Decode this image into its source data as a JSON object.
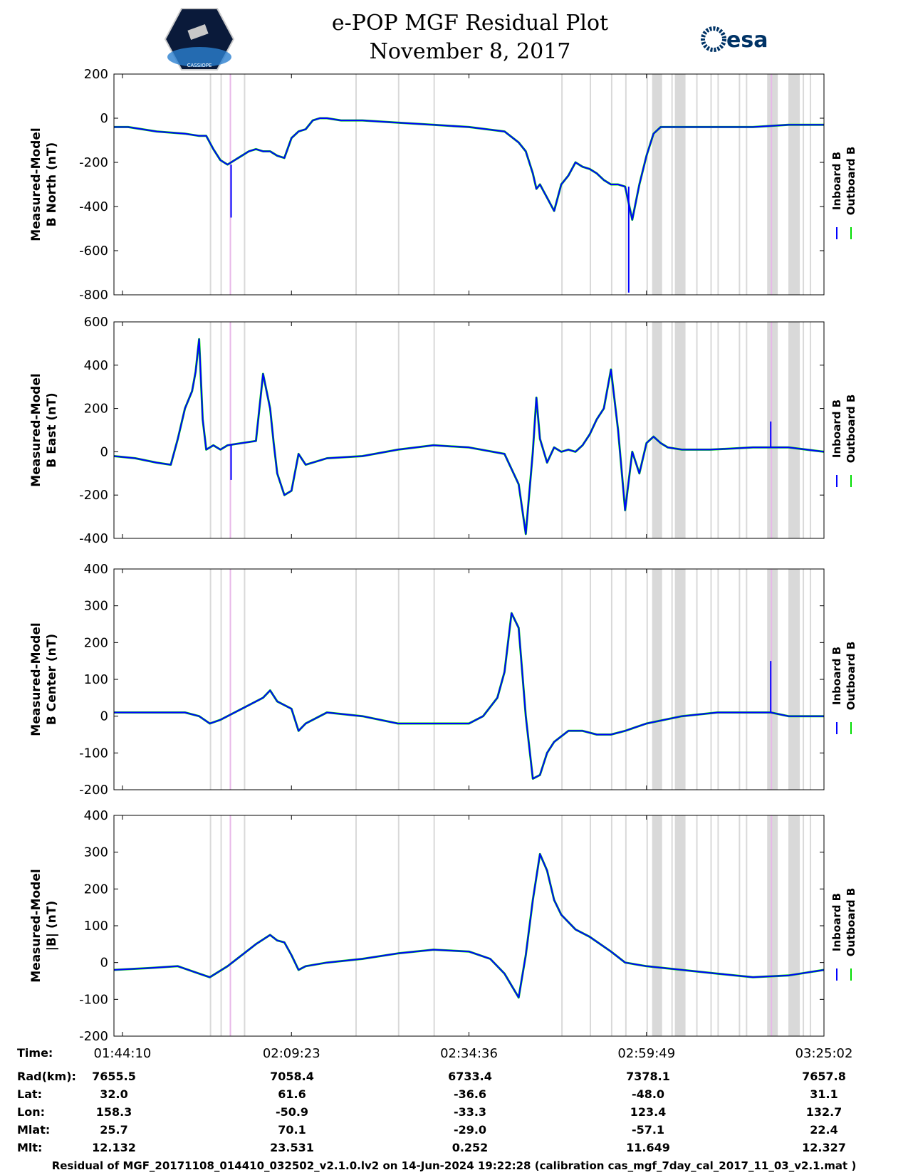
{
  "header": {
    "title": "e-POP MGF Residual Plot",
    "date": "November 8, 2017",
    "logo_left": "CASSIOPE",
    "logo_right": "esa"
  },
  "chart_data": [
    {
      "type": "line",
      "ylabel_line1": "Measured-Model",
      "ylabel_line2": "B North (nT)",
      "ylim": [
        -800,
        200
      ],
      "yticks": [
        "200",
        "0",
        "-200",
        "-400",
        "-600",
        "-800"
      ],
      "legend": [
        "Inboard B",
        "Outboard B"
      ],
      "legend_placement": "right",
      "series_colors": {
        "Inboard B": "#0000ff",
        "Outboard B": "#00dd00"
      },
      "x": [
        0,
        2,
        6,
        10,
        12,
        13,
        14,
        15,
        16,
        17,
        18,
        19,
        20,
        21,
        22,
        23,
        24,
        25,
        26,
        27,
        28,
        29,
        30,
        32,
        35,
        40,
        45,
        50,
        55,
        57,
        58,
        59,
        59.5,
        60,
        60.5,
        61,
        62,
        63,
        64,
        65,
        66,
        67,
        68,
        69,
        70,
        71,
        72,
        73,
        74,
        75,
        76,
        77,
        78,
        80,
        85,
        90,
        95,
        100
      ],
      "values": [
        -40,
        -40,
        -60,
        -70,
        -80,
        -80,
        -140,
        -190,
        -210,
        -190,
        -170,
        -150,
        -140,
        -150,
        -150,
        -170,
        -180,
        -90,
        -60,
        -50,
        -10,
        0,
        0,
        -10,
        -10,
        -20,
        -30,
        -40,
        -60,
        -110,
        -150,
        -250,
        -320,
        -300,
        -330,
        -360,
        -420,
        -300,
        -260,
        -200,
        -220,
        -230,
        -250,
        -280,
        -300,
        -300,
        -310,
        -460,
        -300,
        -170,
        -70,
        -40,
        -40,
        -40,
        -40,
        -40,
        -30,
        -30
      ],
      "events": [
        {
          "x": 16.5,
          "value": -450
        },
        {
          "x": 72.5,
          "value": -790
        }
      ]
    },
    {
      "type": "line",
      "ylabel_line1": "Measured-Model",
      "ylabel_line2": "B East (nT)",
      "ylim": [
        -400,
        600
      ],
      "yticks": [
        "600",
        "400",
        "200",
        "0",
        "-200",
        "-400"
      ],
      "legend": [
        "Inboard B",
        "Outboard B"
      ],
      "legend_placement": "right",
      "series_colors": {
        "Inboard B": "#0000ff",
        "Outboard B": "#00dd00"
      },
      "x": [
        0,
        3,
        6,
        8,
        9,
        10,
        11,
        11.5,
        12,
        12.5,
        13,
        14,
        15,
        16,
        18,
        20,
        21,
        22,
        22.5,
        23,
        24,
        25,
        26,
        27,
        28,
        30,
        35,
        40,
        45,
        50,
        55,
        57,
        58,
        59,
        59.5,
        60,
        61,
        62,
        63,
        64,
        65,
        66,
        67,
        68,
        69,
        70,
        71,
        72,
        73,
        74,
        75,
        76,
        77,
        78,
        80,
        84,
        90,
        95,
        100
      ],
      "values": [
        -20,
        -30,
        -50,
        -60,
        60,
        200,
        280,
        370,
        520,
        150,
        10,
        30,
        10,
        30,
        40,
        50,
        360,
        200,
        40,
        -100,
        -200,
        -180,
        -10,
        -60,
        -50,
        -30,
        -20,
        10,
        30,
        20,
        -10,
        -150,
        -380,
        0,
        250,
        60,
        -50,
        20,
        0,
        10,
        0,
        30,
        80,
        150,
        200,
        380,
        100,
        -270,
        0,
        -100,
        40,
        70,
        40,
        20,
        10,
        10,
        20,
        20,
        0
      ],
      "events": [
        {
          "x": 16.5,
          "value": -130
        },
        {
          "x": 92.5,
          "value": 140
        }
      ]
    },
    {
      "type": "line",
      "ylabel_line1": "Measured-Model",
      "ylabel_line2": "B Center (nT)",
      "ylim": [
        -200,
        400
      ],
      "yticks": [
        "400",
        "300",
        "200",
        "100",
        "0",
        "-100",
        "-200"
      ],
      "legend": [
        "Inboard B",
        "Outboard B"
      ],
      "legend_placement": "right",
      "series_colors": {
        "Inboard B": "#0000ff",
        "Outboard B": "#00dd00"
      },
      "x": [
        0,
        5,
        10,
        12,
        13.5,
        15,
        18,
        21,
        22,
        23,
        25,
        26,
        27,
        30,
        35,
        40,
        45,
        50,
        52,
        54,
        55,
        56,
        57,
        58,
        59,
        60,
        61,
        62,
        64,
        66,
        68,
        70,
        72,
        75,
        80,
        85,
        90,
        92.5,
        95,
        100
      ],
      "values": [
        10,
        10,
        10,
        0,
        -20,
        -10,
        20,
        50,
        70,
        40,
        20,
        -40,
        -20,
        10,
        0,
        -20,
        -20,
        -20,
        0,
        50,
        120,
        280,
        240,
        0,
        -170,
        -160,
        -100,
        -70,
        -40,
        -40,
        -50,
        -50,
        -40,
        -20,
        0,
        10,
        10,
        10,
        0,
        0
      ],
      "events": [
        {
          "x": 92.5,
          "value": 150
        }
      ]
    },
    {
      "type": "line",
      "ylabel_line1": "Measured-Model",
      "ylabel_line2": "|B| (nT)",
      "ylim": [
        -200,
        400
      ],
      "yticks": [
        "400",
        "300",
        "200",
        "100",
        "0",
        "-100",
        "-200"
      ],
      "legend": [
        "Inboard B",
        "Outboard B"
      ],
      "legend_placement": "right",
      "series_colors": {
        "Inboard B": "#0000ff",
        "Outboard B": "#00dd00"
      },
      "x": [
        0,
        5,
        9,
        12,
        13.5,
        16,
        20,
        22,
        23,
        24,
        25,
        26,
        27,
        30,
        35,
        40,
        45,
        50,
        53,
        55,
        57,
        58,
        59,
        60,
        61,
        62,
        63,
        65,
        67,
        70,
        72,
        75,
        80,
        85,
        90,
        95,
        100
      ],
      "values": [
        -20,
        -15,
        -10,
        -30,
        -40,
        -10,
        50,
        75,
        60,
        55,
        20,
        -20,
        -10,
        0,
        10,
        25,
        35,
        30,
        10,
        -30,
        -95,
        20,
        170,
        295,
        250,
        170,
        130,
        90,
        70,
        30,
        0,
        -10,
        -20,
        -30,
        -40,
        -35,
        -20
      ],
      "events": []
    }
  ],
  "x_axis": {
    "ticks": [
      "01:44:10",
      "02:09:23",
      "02:34:36",
      "02:59:49",
      "03:25:02"
    ]
  },
  "ephemeris": {
    "labels": [
      "Time:",
      "Rad(km):",
      "Lat:",
      "Lon:",
      "Mlat:",
      "Mlt:"
    ],
    "rows": [
      [
        "01:44:10",
        "02:09:23",
        "02:34:36",
        "02:59:49",
        "03:25:02"
      ],
      [
        "7655.5",
        "7058.4",
        "6733.4",
        "7378.1",
        "7657.8"
      ],
      [
        "32.0",
        "61.6",
        "-36.6",
        "-48.0",
        "31.1"
      ],
      [
        "158.3",
        "-50.9",
        "-33.3",
        "123.4",
        "132.7"
      ],
      [
        "25.7",
        "70.1",
        "-29.0",
        "-57.1",
        "22.4"
      ],
      [
        "12.132",
        "23.531",
        "0.252",
        "11.649",
        "12.327"
      ]
    ]
  },
  "footer": "Residual of MGF_20171108_014410_032502_v2.1.0.lv2 on 14-Jun-2024 19:22:28 (calibration cas_mgf_7day_cal_2017_11_03_v2.1.mat )"
}
